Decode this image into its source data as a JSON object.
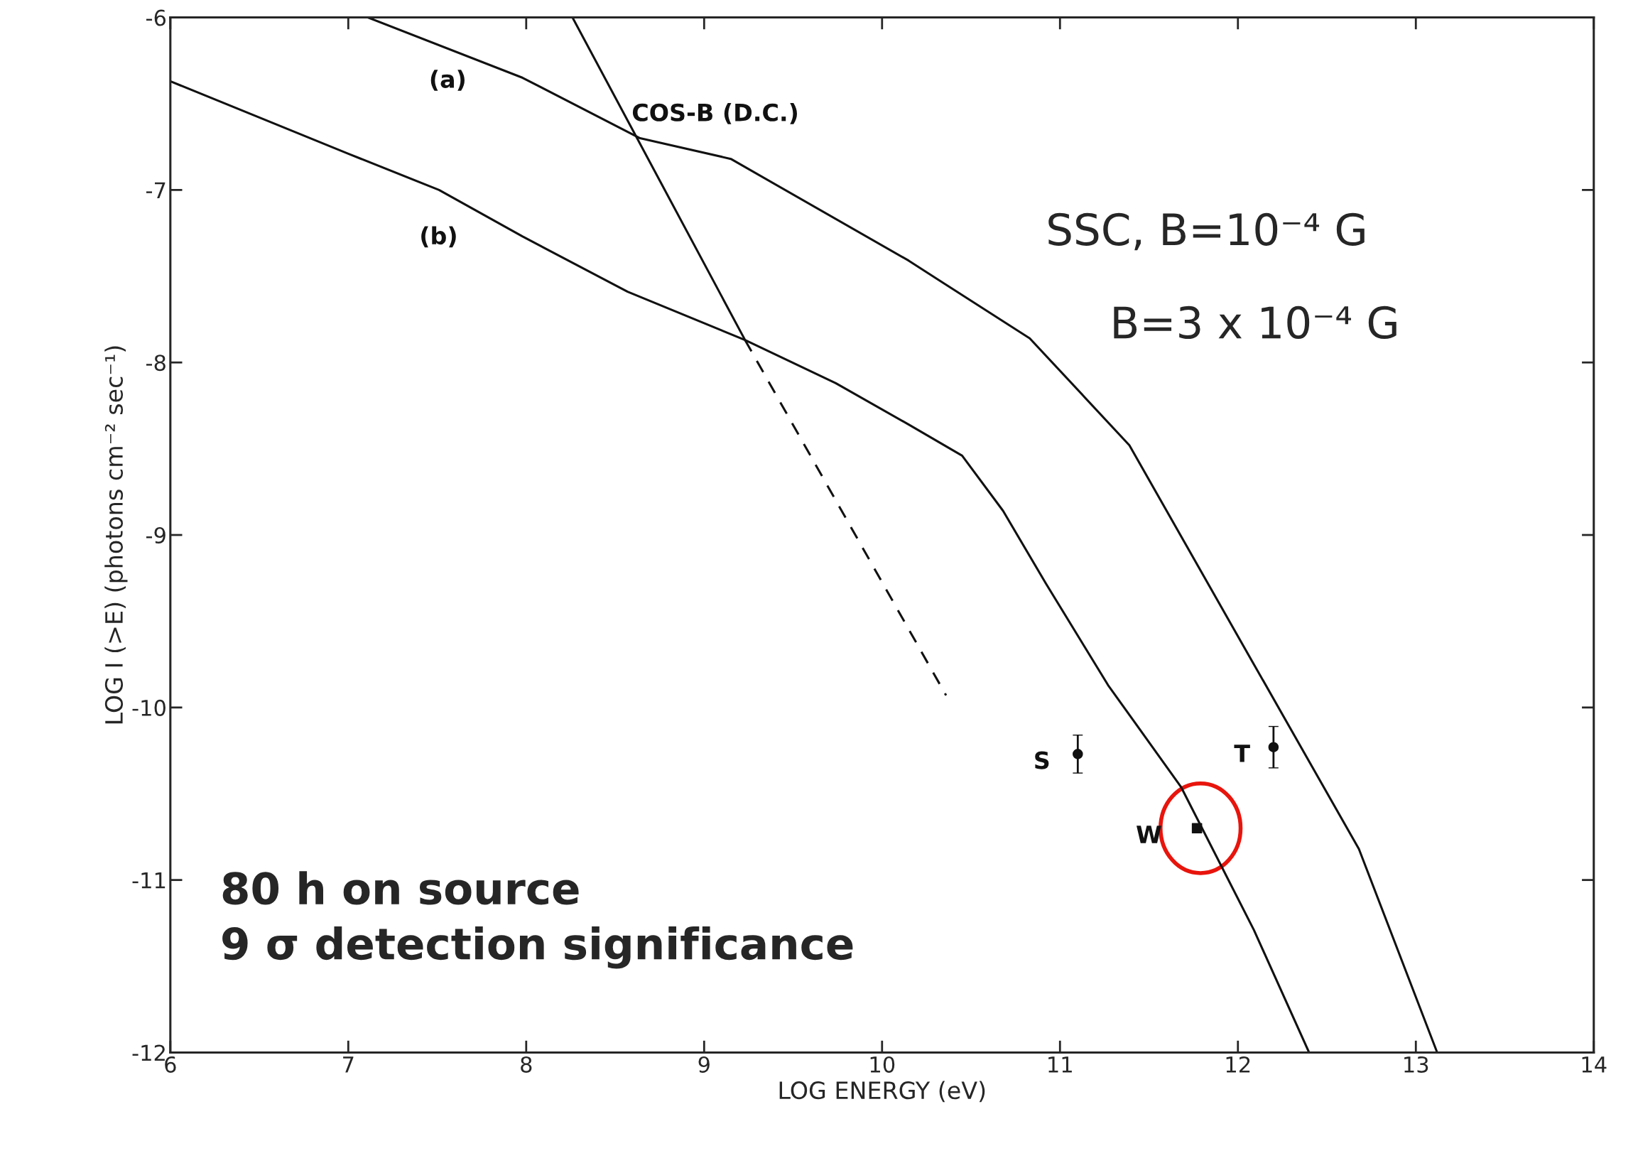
{
  "chart_data": {
    "type": "line",
    "xlabel": "LOG ENERGY (eV)",
    "ylabel": "LOG I (>E) (photons cm⁻² sec⁻¹)",
    "xlim": [
      6,
      14
    ],
    "ylim": [
      -12,
      -6
    ],
    "xticks": [
      6,
      7,
      8,
      9,
      10,
      11,
      12,
      13,
      14
    ],
    "yticks": [
      -12,
      -11,
      -10,
      -9,
      -8,
      -7,
      -6
    ],
    "grid": false,
    "legend": false,
    "series": [
      {
        "name": "(a)",
        "color": "#111111",
        "line_style": "solid",
        "marker": "none",
        "x": [
          7.11,
          7.98,
          8.64,
          9.15,
          10.15,
          10.33,
          10.83,
          11.39,
          12.09,
          12.68,
          13.12
        ],
        "values": [
          -6.0,
          -6.35,
          -6.7,
          -6.82,
          -7.41,
          -7.53,
          -7.86,
          -8.48,
          -9.75,
          -10.82,
          -12.0
        ]
      },
      {
        "name": "(b)",
        "color": "#111111",
        "line_style": "solid",
        "marker": "none",
        "x": [
          6.0,
          7.0,
          7.51,
          7.98,
          8.57,
          9.23,
          9.74,
          10.15,
          10.45,
          10.68,
          10.92,
          11.27,
          11.68,
          12.09,
          12.4
        ],
        "values": [
          -6.37,
          -6.79,
          -7.0,
          -7.27,
          -7.59,
          -7.87,
          -8.12,
          -8.36,
          -8.54,
          -8.86,
          -9.28,
          -9.87,
          -10.46,
          -11.29,
          -12.0
        ]
      },
      {
        "name": "COS-B (D.C.)",
        "color": "#111111",
        "line_style": "solid",
        "marker": "none",
        "x": [
          8.26,
          9.23
        ],
        "values": [
          -6.0,
          -7.87
        ]
      },
      {
        "color": "#111111",
        "line_style": "dashed",
        "marker": "none",
        "x": [
          9.23,
          10.36
        ],
        "values": [
          -7.87,
          -9.93
        ]
      },
      {
        "name": "S",
        "type": "scatter",
        "color": "#111111",
        "marker": "circle",
        "x": [
          11.1
        ],
        "values": [
          -10.27
        ],
        "errors": [
          0.11
        ]
      },
      {
        "name": "T",
        "type": "scatter",
        "color": "#111111",
        "marker": "circle",
        "x": [
          12.2
        ],
        "values": [
          -10.23
        ],
        "errors": [
          0.12
        ]
      },
      {
        "name": "W",
        "type": "scatter",
        "color": "#111111",
        "marker": "square",
        "x": [
          11.77
        ],
        "values": [
          -10.7
        ]
      }
    ],
    "annotations": [
      "SSC, B=10⁻⁴ G",
      "B=3 x 10⁻⁴ G",
      "80 h on source\n9 σ detection significance"
    ]
  }
}
